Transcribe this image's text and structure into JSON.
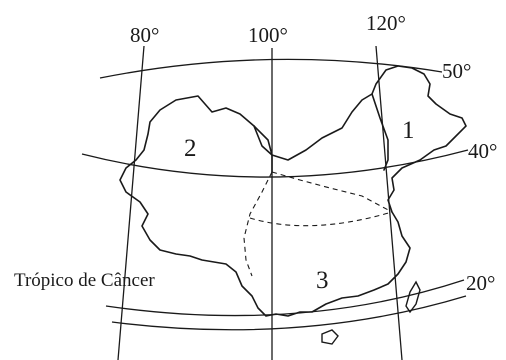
{
  "map": {
    "longitudes": [
      "80°",
      "100°",
      "120°"
    ],
    "latitudes": [
      "50°",
      "40°",
      "20°"
    ],
    "regions": [
      "1",
      "2",
      "3"
    ],
    "tropic_label": "Trópico de Câncer"
  },
  "colors": {
    "ink": "#1a1a1a",
    "background": "#ffffff"
  }
}
